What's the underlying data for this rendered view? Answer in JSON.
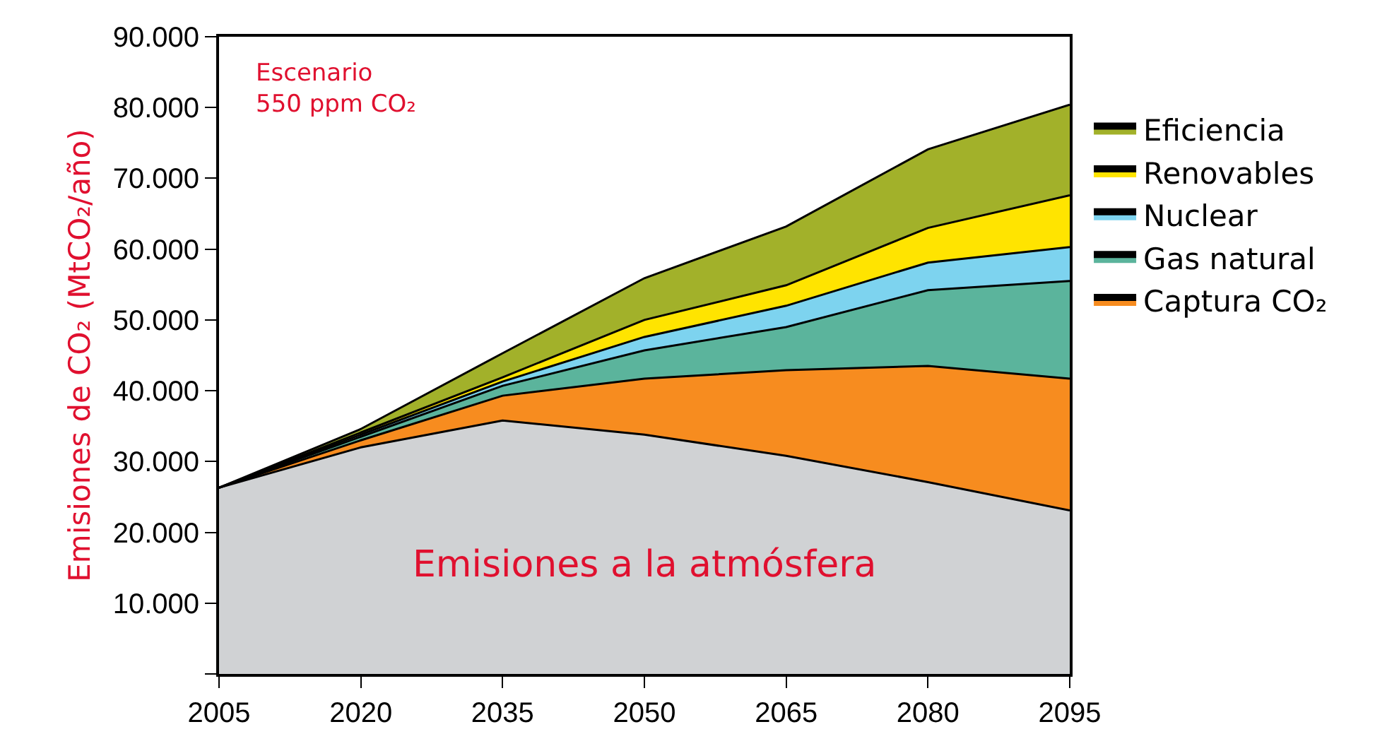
{
  "chart_data": {
    "type": "area",
    "stacked": true,
    "ylabel": "Emisiones de CO₂ (MtCO₂/año)",
    "x": [
      2005,
      2020,
      2035,
      2050,
      2065,
      2080,
      2095
    ],
    "series": [
      {
        "color": "#d0d2d4",
        "values": [
          26300,
          32000,
          35800,
          33800,
          30800,
          27100,
          23100
        ]
      },
      {
        "name": "Captura CO₂",
        "color": "#f78c1f",
        "values": [
          0,
          1000,
          3500,
          7900,
          12100,
          16400,
          18600
        ]
      },
      {
        "name": "Gas natural",
        "color": "#5bb49c",
        "values": [
          0,
          500,
          1400,
          4000,
          6100,
          10700,
          13800
        ]
      },
      {
        "name": "Nuclear",
        "color": "#7dd3ef",
        "values": [
          0,
          300,
          600,
          1900,
          3000,
          3900,
          4800
        ]
      },
      {
        "name": "Renovables",
        "color": "#ffe400",
        "values": [
          0,
          300,
          600,
          2400,
          2900,
          4900,
          7300
        ]
      },
      {
        "name": "Eficiencia",
        "color": "#a2b12a",
        "values": [
          0,
          500,
          3400,
          5900,
          8300,
          11100,
          12800
        ]
      }
    ],
    "xlim": [
      2005,
      2095
    ],
    "xticks": [
      2005,
      2020,
      2035,
      2050,
      2065,
      2080,
      2095
    ],
    "ylim": [
      0,
      90000
    ],
    "yticks": [
      {
        "value": 0,
        "label": null
      },
      {
        "value": 10000,
        "label": "10.000"
      },
      {
        "value": 20000,
        "label": "20.000"
      },
      {
        "value": 30000,
        "label": "30.000"
      },
      {
        "value": 40000,
        "label": "40.000"
      },
      {
        "value": 50000,
        "label": "50.000"
      },
      {
        "value": 60000,
        "label": "60.000"
      },
      {
        "value": 70000,
        "label": "70.000"
      },
      {
        "value": 80000,
        "label": "80.000"
      },
      {
        "value": 90000,
        "label": "90.000"
      }
    ],
    "annotations": [
      "Escenario\n550 ppm CO₂",
      "Emisiones a la atmósfera"
    ],
    "legend": "right"
  }
}
